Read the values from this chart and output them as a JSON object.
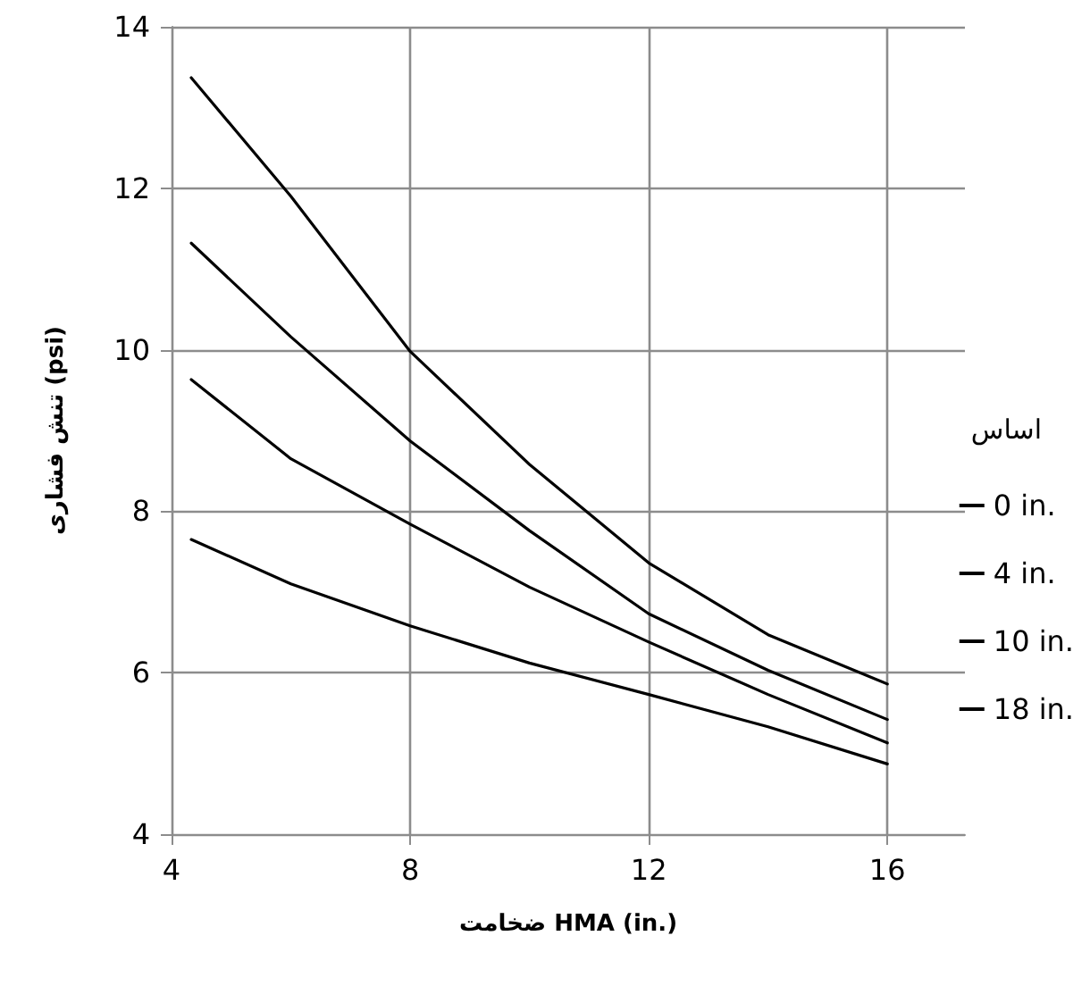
{
  "chart_data": {
    "type": "line",
    "xlabel": "ضخامت HMA (in.)",
    "ylabel": "تنش فشاری (psi)",
    "legend_title": "اساس",
    "x": [
      4.33,
      6,
      8,
      10,
      12,
      14,
      16
    ],
    "series": [
      {
        "name": "0 in.",
        "color": "#000000",
        "values": [
          13.37,
          11.9,
          9.98,
          8.58,
          7.36,
          6.47,
          5.86
        ]
      },
      {
        "name": "4 in.",
        "color": "#000000",
        "values": [
          11.32,
          10.16,
          8.87,
          7.76,
          6.73,
          6.03,
          5.42
        ]
      },
      {
        "name": "10 in.",
        "color": "#000000",
        "values": [
          9.63,
          8.65,
          7.84,
          7.06,
          6.38,
          5.73,
          5.13
        ]
      },
      {
        "name": "18 in.",
        "color": "#000000",
        "values": [
          7.65,
          7.1,
          6.58,
          6.12,
          5.73,
          5.33,
          4.87
        ]
      }
    ],
    "xlim": [
      4,
      17.3
    ],
    "xticks": [
      4,
      8,
      12,
      16
    ],
    "ylim": [
      4,
      14
    ],
    "yticks": [
      4,
      6,
      8,
      10,
      12,
      14
    ],
    "grid": true,
    "legend": "right",
    "marker": "none",
    "line_style": "solid"
  }
}
